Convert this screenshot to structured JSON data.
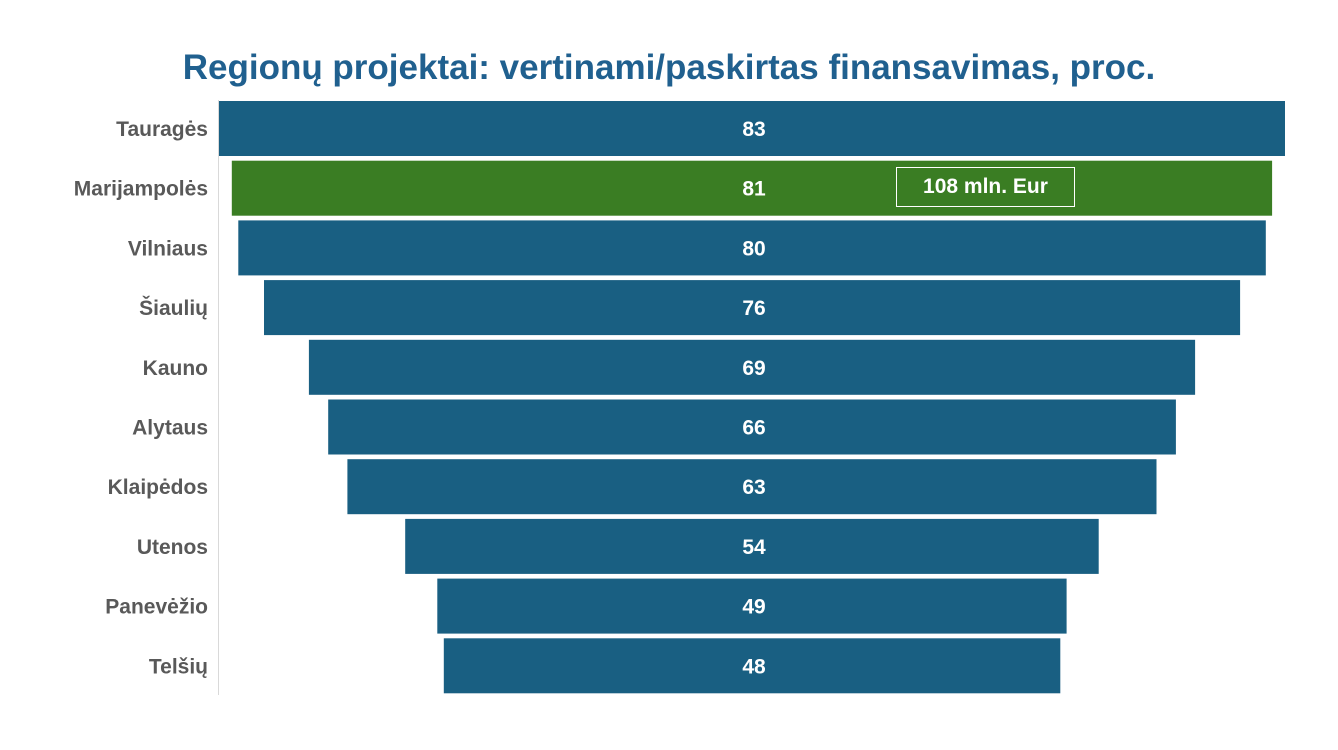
{
  "colors": {
    "title": "#20608f",
    "bar_default": "#195f82",
    "bar_highlight": "#3a7d23",
    "label": "#595959",
    "value_text": "#ffffff",
    "axis": "#d9d9d9"
  },
  "chart_data": {
    "type": "bar",
    "orientation": "horizontal-centered-funnel",
    "title": "Regionų projektai: vertinami/paskirtas finansavimas, proc.",
    "xlabel": "",
    "ylabel": "",
    "categories": [
      "Tauragės",
      "Marijampolės",
      "Vilniaus",
      "Šiaulių",
      "Kauno",
      "Alytaus",
      "Klaipėdos",
      "Utenos",
      "Panevėžio",
      "Telšių"
    ],
    "values": [
      83,
      81,
      80,
      76,
      69,
      66,
      63,
      54,
      49,
      48
    ],
    "highlight_index": 1,
    "xlim": [
      0,
      83
    ],
    "grid": false,
    "legend": "none",
    "annotation": "108 mln. Eur"
  }
}
